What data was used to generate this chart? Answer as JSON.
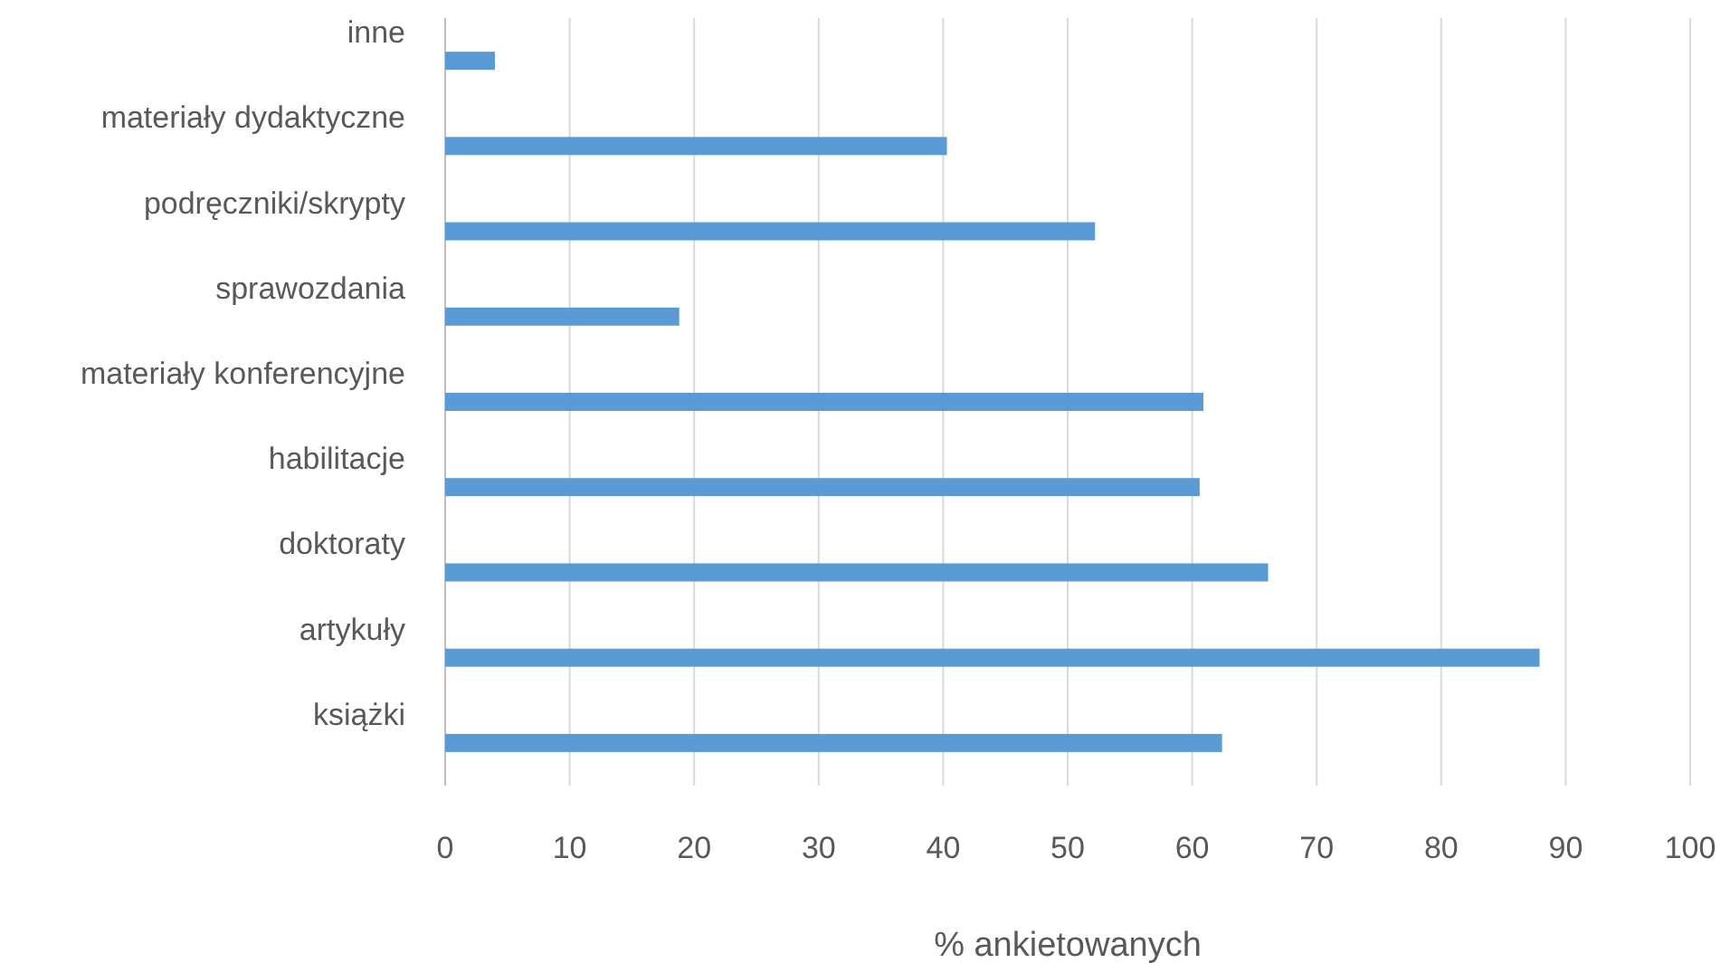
{
  "chart_data": {
    "type": "bar",
    "orientation": "horizontal",
    "xlabel": "% ankietowanych",
    "categories": [
      "inne",
      "materiały dydaktyczne",
      "podręczniki/skrypty",
      "sprawozdania",
      "materiały konferencyjne",
      "habilitacje",
      "doktoraty",
      "artykuły",
      "książki"
    ],
    "values": [
      4,
      40.3,
      52.2,
      18.8,
      60.9,
      60.6,
      66.1,
      87.9,
      62.4
    ],
    "color": "#5b9bd5",
    "xlim": [
      0,
      100
    ],
    "xticks": [
      0,
      10,
      20,
      30,
      40,
      50,
      60,
      70,
      80,
      90,
      100
    ],
    "grid": "x"
  }
}
